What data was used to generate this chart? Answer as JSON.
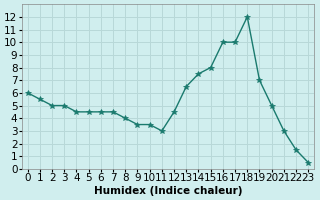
{
  "x": [
    0,
    1,
    2,
    3,
    4,
    5,
    6,
    7,
    8,
    9,
    10,
    11,
    12,
    13,
    14,
    15,
    16,
    17,
    18,
    19,
    20,
    21,
    22,
    23
  ],
  "y": [
    6.0,
    5.5,
    5.0,
    5.0,
    4.5,
    4.5,
    4.5,
    4.5,
    4.0,
    3.5,
    3.5,
    3.0,
    4.5,
    6.5,
    7.5,
    8.0,
    10.0,
    10.0,
    12.0,
    7.0,
    5.0,
    3.0,
    1.5,
    0.5
  ],
  "line_color": "#1a7a6e",
  "marker_color": "#1a7a6e",
  "bg_color": "#d0eeee",
  "grid_color": "#b8d8d8",
  "xlabel": "Humidex (Indice chaleur)",
  "xlim": [
    -0.5,
    23.5
  ],
  "ylim": [
    0,
    13
  ],
  "yticks": [
    0,
    1,
    2,
    3,
    4,
    5,
    6,
    7,
    8,
    9,
    10,
    11,
    12
  ],
  "xticks": [
    0,
    1,
    2,
    3,
    4,
    5,
    6,
    7,
    8,
    9,
    10,
    11,
    12,
    13,
    14,
    15,
    16,
    17,
    18,
    19,
    20,
    21,
    22,
    23
  ],
  "font_size": 7.5
}
